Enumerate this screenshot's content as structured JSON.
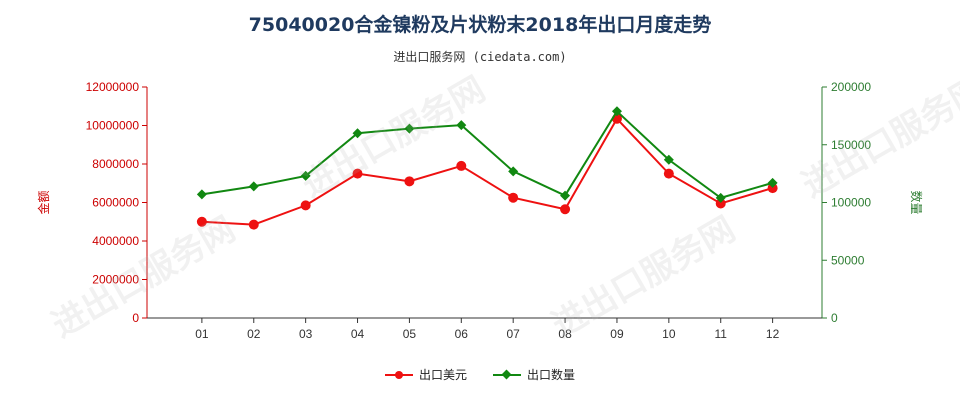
{
  "chart_data": {
    "type": "line",
    "title": "75040020合金镍粉及片状粉末2018年出口月度走势",
    "subtitle": "进出口服务网 (ciedata.com)",
    "categories": [
      "01",
      "02",
      "03",
      "04",
      "05",
      "06",
      "07",
      "08",
      "09",
      "10",
      "11",
      "12"
    ],
    "y_left": {
      "label": "金额",
      "min": 0,
      "max": 12000000,
      "ticks": [
        "0",
        "2000000",
        "4000000",
        "6000000",
        "8000000",
        "10000000",
        "12000000"
      ],
      "color": "#cc0000"
    },
    "y_right": {
      "label": "数量",
      "min": 0,
      "max": 200000,
      "ticks": [
        "0",
        "50000",
        "100000",
        "150000",
        "200000"
      ],
      "color": "#2e7d32"
    },
    "series": [
      {
        "name": "出口美元",
        "axis": "left",
        "color": "#ee1111",
        "marker": "circle",
        "values": [
          5000000,
          4850000,
          5850000,
          7500000,
          7100000,
          7900000,
          6250000,
          5650000,
          10350000,
          7500000,
          5950000,
          6750000
        ]
      },
      {
        "name": "出口数量",
        "axis": "right",
        "color": "#118811",
        "marker": "diamond",
        "values": [
          107000,
          114000,
          123000,
          160000,
          164000,
          167000,
          127000,
          106000,
          179000,
          137000,
          104000,
          117000
        ]
      }
    ],
    "legend_position": "bottom",
    "grid": false
  },
  "watermark_text": "进出口服务网"
}
